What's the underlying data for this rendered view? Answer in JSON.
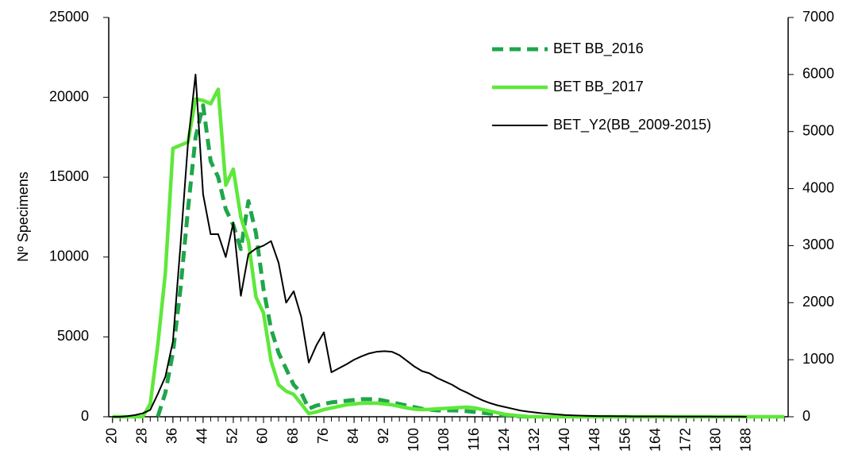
{
  "chart_data": {
    "type": "line",
    "ylabel": "Nº Specimens",
    "x": [
      20,
      22,
      24,
      26,
      28,
      30,
      32,
      34,
      36,
      38,
      40,
      42,
      44,
      46,
      48,
      50,
      52,
      54,
      56,
      58,
      60,
      62,
      64,
      66,
      68,
      70,
      72,
      74,
      76,
      78,
      80,
      82,
      84,
      86,
      88,
      90,
      92,
      94,
      96,
      98,
      100,
      102,
      104,
      106,
      108,
      110,
      112,
      114,
      116,
      118,
      120,
      122,
      124,
      126,
      128,
      130,
      132,
      134,
      136,
      138,
      140,
      142,
      144,
      146,
      148,
      150,
      152,
      154,
      156,
      158,
      160,
      162,
      164,
      166,
      168,
      170,
      172,
      174,
      176,
      178,
      180,
      182,
      184,
      186,
      188,
      190,
      192,
      194,
      196,
      198
    ],
    "xlim": [
      19,
      199
    ],
    "xticks": [
      20,
      28,
      36,
      44,
      52,
      60,
      68,
      76,
      84,
      92,
      100,
      108,
      116,
      124,
      132,
      140,
      148,
      156,
      164,
      172,
      180,
      188
    ],
    "ylim": [
      0,
      25000
    ],
    "yticks": [
      0,
      5000,
      10000,
      15000,
      20000,
      25000
    ],
    "y2lim": [
      0,
      7000
    ],
    "y2ticks": [
      0,
      1000,
      2000,
      3000,
      4000,
      5000,
      6000,
      7000
    ],
    "legend": "upper right",
    "grid": false,
    "series": [
      {
        "name": "BET BB_2016",
        "color": "#1fa64a",
        "line_style": "dashed",
        "values": [
          null,
          null,
          null,
          null,
          null,
          null,
          0,
          1500,
          4000,
          8000,
          13000,
          17500,
          19500,
          16000,
          15000,
          13000,
          12000,
          10500,
          13500,
          11500,
          8000,
          5500,
          4000,
          3000,
          2000,
          1500,
          500,
          700,
          800,
          900,
          950,
          1000,
          1050,
          1100,
          1100,
          1100,
          1000,
          900,
          800,
          700,
          600,
          500,
          450,
          400,
          400,
          400,
          380,
          350,
          300,
          250,
          200,
          150,
          100,
          60,
          30,
          0,
          null,
          null,
          null,
          null,
          null,
          null,
          null,
          null,
          null,
          null,
          null,
          null,
          null,
          null,
          null,
          null,
          null,
          null,
          null,
          null,
          null,
          null,
          null,
          null,
          null,
          null,
          null,
          null,
          null,
          null,
          null,
          null,
          null,
          null
        ]
      },
      {
        "name": "BET BB_2017",
        "color": "#5ee83a",
        "line_style": "solid",
        "values": [
          0,
          0,
          0,
          0,
          0,
          800,
          4500,
          9000,
          16800,
          17000,
          17200,
          19900,
          19800,
          19600,
          20500,
          14500,
          15500,
          12500,
          11000,
          7500,
          6500,
          3500,
          2000,
          1600,
          1400,
          800,
          200,
          300,
          450,
          550,
          650,
          750,
          800,
          850,
          850,
          850,
          800,
          750,
          650,
          550,
          480,
          450,
          460,
          500,
          520,
          550,
          580,
          600,
          550,
          450,
          350,
          250,
          150,
          100,
          50,
          0,
          0,
          0,
          0,
          0,
          0,
          0,
          0,
          0,
          0,
          0,
          0,
          0,
          0,
          0,
          0,
          0,
          0,
          0,
          0,
          0,
          0,
          0,
          0,
          0,
          0,
          0,
          0,
          0,
          0,
          0,
          0,
          0,
          0,
          0
        ]
      },
      {
        "name": "BET_Y2(BB_2009-2015)",
        "color": "#000000",
        "line_style": "thin",
        "axis": "y2",
        "values": [
          0,
          0,
          10,
          30,
          60,
          120,
          400,
          700,
          1320,
          3000,
          4800,
          6000,
          3900,
          3200,
          3200,
          2800,
          3400,
          2120,
          2850,
          2950,
          3000,
          3080,
          2700,
          2000,
          2200,
          1750,
          950,
          1250,
          1480,
          780,
          850,
          920,
          1000,
          1060,
          1110,
          1140,
          1150,
          1140,
          1080,
          980,
          880,
          800,
          760,
          680,
          620,
          560,
          480,
          420,
          350,
          290,
          240,
          200,
          170,
          140,
          110,
          90,
          75,
          60,
          50,
          40,
          30,
          25,
          20,
          15,
          12,
          10,
          10,
          8,
          8,
          6,
          6,
          5,
          5,
          5,
          4,
          4,
          4,
          3,
          3,
          3,
          2,
          2,
          1,
          1,
          0,
          null,
          null,
          null,
          null,
          null
        ]
      }
    ]
  }
}
